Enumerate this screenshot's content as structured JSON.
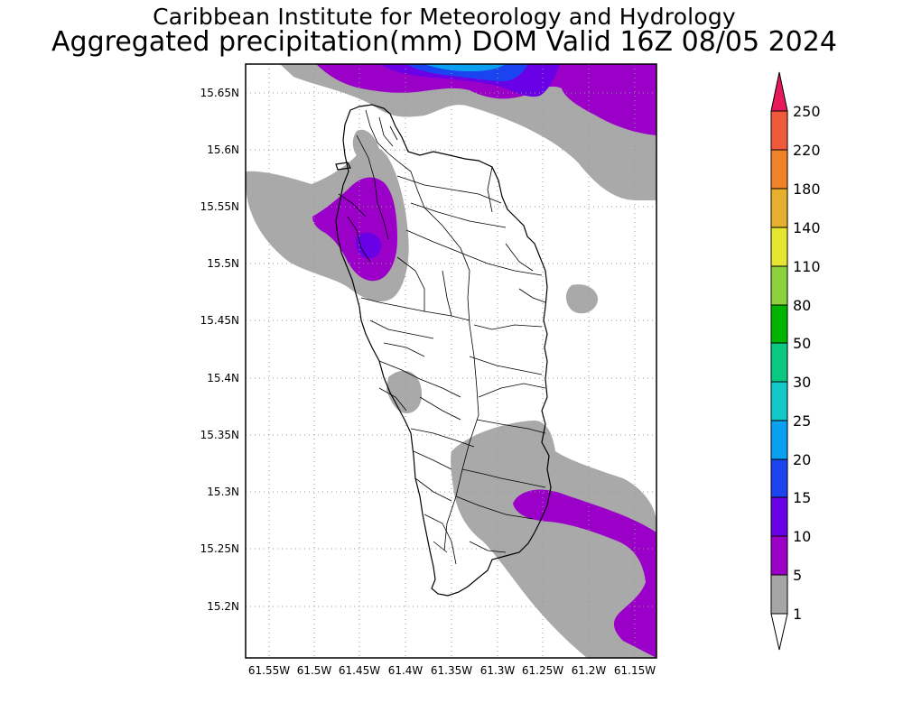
{
  "header": {
    "title_line1": "Caribbean Institute for Meteorology and Hydrology",
    "title_line2": "Aggregated precipitation(mm) DOM Valid 16Z 08/05 2024"
  },
  "map": {
    "lat_labels": [
      "15.65N",
      "15.6N",
      "15.55N",
      "15.5N",
      "15.45N",
      "15.4N",
      "15.35N",
      "15.3N",
      "15.25N",
      "15.2N"
    ],
    "lon_labels": [
      "61.55W",
      "61.5W",
      "61.45W",
      "61.4W",
      "61.35W",
      "61.3W",
      "61.25W",
      "61.2W",
      "61.15W"
    ],
    "lon_range": [
      "61.575W",
      "61.125W"
    ],
    "lat_range": [
      "15.155N",
      "15.675N"
    ],
    "grid": true
  },
  "colorbar": {
    "levels": [
      "1",
      "5",
      "10",
      "15",
      "20",
      "25",
      "30",
      "50",
      "80",
      "110",
      "140",
      "180",
      "220",
      "250"
    ],
    "colors": [
      "#a6a6a6",
      "#9b00c8",
      "#6a00e6",
      "#1c43f0",
      "#0aa0f0",
      "#14c8c8",
      "#0ac882",
      "#00b400",
      "#00d200",
      "#8cd23c",
      "#e6e632",
      "#e6af2d",
      "#f08228",
      "#f05a3c",
      "#e6195a"
    ],
    "background": "#ffffff"
  }
}
